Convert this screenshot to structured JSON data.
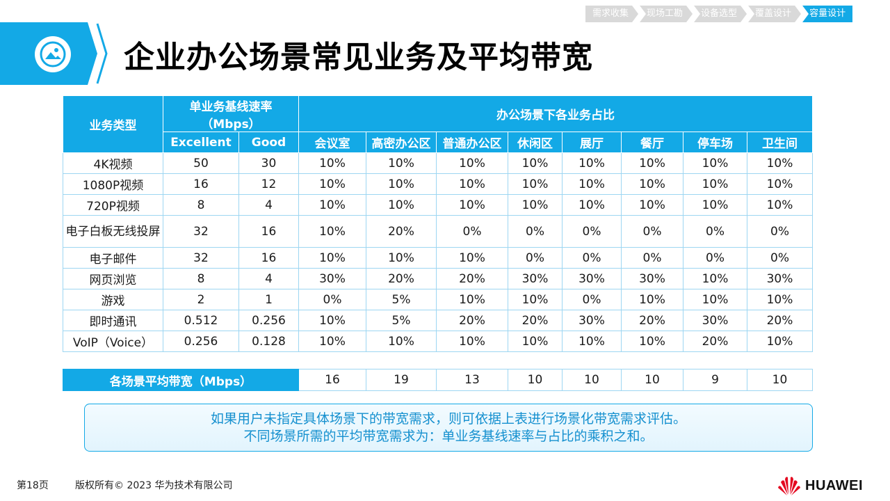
{
  "steps": [
    "需求收集",
    "现场工勘",
    "设备选型",
    "覆盖设计",
    "容量设计"
  ],
  "title": "企业办公场景常见业务及平均带宽",
  "table": {
    "col_service": "业务类型",
    "col_rate_line1": "单业务基线速率",
    "col_rate_line2": "（Mbps）",
    "col_ratio": "办公场景下各业务占比",
    "sub_excellent": "Excellent",
    "sub_good": "Good",
    "scenes": [
      "会议室",
      "高密办公区",
      "普通办公区",
      "休闲区",
      "展厅",
      "餐厅",
      "停车场",
      "卫生间"
    ],
    "rows": [
      {
        "name": "4K视频",
        "excellent": "50",
        "good": "30",
        "ratios": [
          "10%",
          "10%",
          "10%",
          "10%",
          "10%",
          "10%",
          "10%",
          "10%"
        ]
      },
      {
        "name": "1080P视频",
        "excellent": "16",
        "good": "12",
        "ratios": [
          "10%",
          "10%",
          "10%",
          "10%",
          "10%",
          "10%",
          "10%",
          "10%"
        ]
      },
      {
        "name": "720P视频",
        "excellent": "8",
        "good": "4",
        "ratios": [
          "10%",
          "10%",
          "10%",
          "10%",
          "10%",
          "10%",
          "10%",
          "10%"
        ]
      },
      {
        "name": "电子白板无线投屏",
        "excellent": "32",
        "good": "16",
        "ratios": [
          "10%",
          "20%",
          "0%",
          "0%",
          "0%",
          "0%",
          "0%",
          "0%"
        ]
      },
      {
        "name": "电子邮件",
        "excellent": "32",
        "good": "16",
        "ratios": [
          "10%",
          "10%",
          "10%",
          "0%",
          "0%",
          "0%",
          "0%",
          "0%"
        ]
      },
      {
        "name": "网页浏览",
        "excellent": "8",
        "good": "4",
        "ratios": [
          "30%",
          "20%",
          "20%",
          "30%",
          "30%",
          "30%",
          "10%",
          "30%"
        ]
      },
      {
        "name": "游戏",
        "excellent": "2",
        "good": "1",
        "ratios": [
          "0%",
          "5%",
          "10%",
          "10%",
          "0%",
          "10%",
          "10%",
          "10%"
        ]
      },
      {
        "name": "即时通讯",
        "excellent": "0.512",
        "good": "0.256",
        "ratios": [
          "10%",
          "5%",
          "20%",
          "20%",
          "30%",
          "20%",
          "30%",
          "20%"
        ]
      },
      {
        "name": "VoIP（Voice）",
        "excellent": "0.256",
        "good": "0.128",
        "ratios": [
          "10%",
          "10%",
          "10%",
          "10%",
          "10%",
          "10%",
          "20%",
          "10%"
        ]
      }
    ]
  },
  "avg": {
    "label": "各场景平均带宽（Mbps）",
    "values": [
      "16",
      "19",
      "13",
      "10",
      "10",
      "10",
      "9",
      "10"
    ]
  },
  "note": {
    "line1": "如果用户未指定具体场景下的带宽需求，则可依据上表进行场景化带宽需求评估。",
    "line2": "不同场景所需的平均带宽需求为：单业务基线速率与占比的乘积之和。"
  },
  "footer": {
    "page": "第18页",
    "copyright": "版权所有© 2023 华为技术有限公司",
    "brand": "HUAWEI"
  },
  "colors": {
    "accent": "#13a9e6",
    "note_text": "#1590cf",
    "step_inactive": "#d9d9d9"
  },
  "icons": {
    "title": "image-icon",
    "logo": "huawei-logo-icon"
  }
}
